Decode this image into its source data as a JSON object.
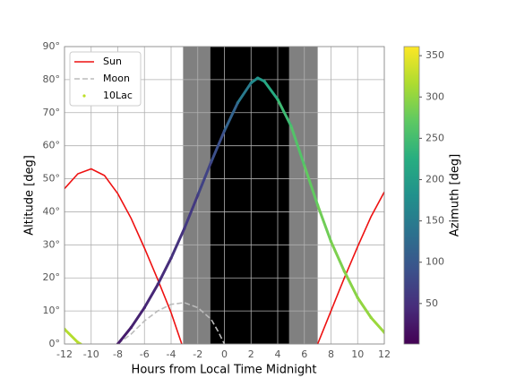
{
  "chart_data": {
    "type": "line",
    "xlabel": "Hours from Local Time Midnight",
    "ylabel": "Altitude [deg]",
    "xlim": [
      -12,
      12
    ],
    "xticks": [
      -12,
      -10,
      -8,
      -6,
      -4,
      -2,
      0,
      2,
      4,
      6,
      8,
      10,
      12
    ],
    "ylim": [
      0,
      90
    ],
    "yticks": [
      {
        "value": 0,
        "label": "0°"
      },
      {
        "value": 10,
        "label": "10°"
      },
      {
        "value": 20,
        "label": "20°"
      },
      {
        "value": 30,
        "label": "30°"
      },
      {
        "value": 40,
        "label": "40°"
      },
      {
        "value": 50,
        "label": "50°"
      },
      {
        "value": 60,
        "label": "60°"
      },
      {
        "value": 70,
        "label": "70°"
      },
      {
        "value": 80,
        "label": "80°"
      },
      {
        "value": 90,
        "label": "90°"
      }
    ],
    "grid": true,
    "legend": "upper left",
    "shaded_regions": [
      {
        "xlim": [
          -3.1,
          7.0
        ],
        "color": "#808080"
      },
      {
        "xlim": [
          -1.05,
          4.85
        ],
        "color": "#000000"
      }
    ],
    "series": [
      {
        "name": "Sun",
        "color": "#ee1111",
        "x": [
          -12,
          -11,
          -10,
          -9,
          -8,
          -7,
          -6,
          -5,
          -4,
          -3.2,
          2,
          7,
          8,
          9,
          10,
          11,
          12
        ],
        "values": [
          47,
          51.5,
          53,
          51,
          45.5,
          38,
          29,
          19.5,
          9.5,
          0,
          null,
          0,
          10,
          20,
          29.5,
          38.5,
          46
        ]
      },
      {
        "name": "Moon",
        "color": "#bbbbbb",
        "linestyle": "dashed",
        "x": [
          -8,
          -7,
          -6,
          -5,
          -4,
          -3,
          -2,
          -1,
          -0.5,
          0
        ],
        "values": [
          0,
          3,
          7,
          10,
          12,
          12.5,
          11,
          7.5,
          4,
          0
        ]
      },
      {
        "name": "10Lac",
        "type": "scatter",
        "color": "#bddf26",
        "x": [
          -12,
          -11,
          -10.8,
          -9,
          -8,
          -7,
          -6,
          -5,
          -4,
          -3,
          -2,
          -1,
          0,
          1,
          2,
          2.5,
          3,
          4,
          5,
          6,
          7,
          8,
          9,
          10,
          11,
          12
        ],
        "values": [
          4.5,
          0.5,
          0,
          null,
          0,
          5,
          11,
          18,
          26,
          35,
          45,
          55,
          64.5,
          73,
          79,
          80.5,
          79.5,
          74,
          66,
          54,
          42,
          31,
          22,
          14,
          8,
          3.5
        ],
        "azimuth": [
          318,
          322,
          323,
          null,
          25,
          32,
          38,
          44,
          50,
          57,
          65,
          78,
          100,
          130,
          165,
          185,
          205,
          235,
          255,
          268,
          277,
          285,
          292,
          298,
          303,
          308
        ]
      }
    ],
    "colorbar": {
      "label": "Azimuth [deg]",
      "lim": [
        1,
        361
      ],
      "ticks": [
        50,
        100,
        150,
        200,
        250,
        300,
        350
      ],
      "colormap": "viridis"
    }
  }
}
